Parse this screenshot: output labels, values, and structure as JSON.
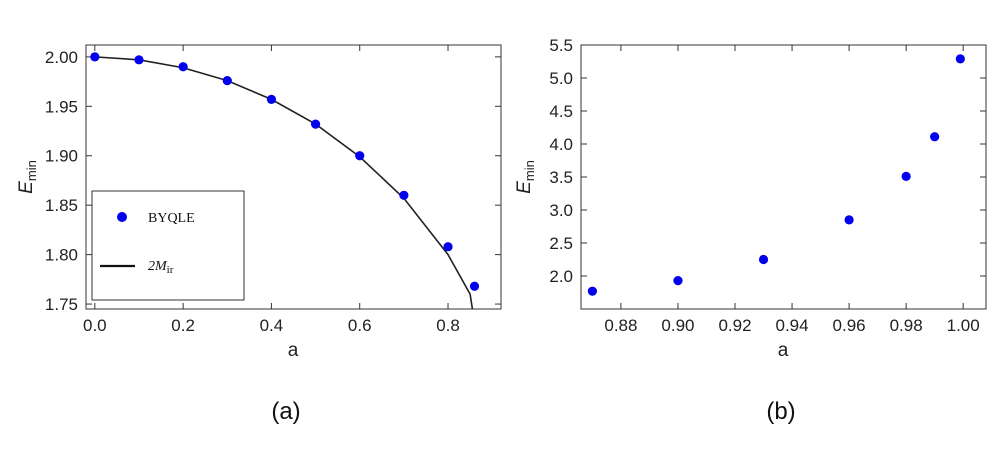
{
  "chart_data": [
    {
      "panel_label": "(a)",
      "type": "scatter",
      "xlabel": "a",
      "ylabel": {
        "base": "E",
        "sub": "min"
      },
      "xlim": [
        -0.02,
        0.92
      ],
      "ylim": [
        1.745,
        2.012
      ],
      "xticks": [
        "0.0",
        "0.2",
        "0.4",
        "0.6",
        "0.8"
      ],
      "xtick_values": [
        0.0,
        0.2,
        0.4,
        0.6,
        0.8
      ],
      "yticks": [
        "1.75",
        "1.80",
        "1.85",
        "1.90",
        "1.95",
        "2.00"
      ],
      "ytick_values": [
        1.75,
        1.8,
        1.85,
        1.9,
        1.95,
        2.0
      ],
      "series": [
        {
          "name": "BYQLE",
          "kind": "points",
          "color": "#0000ee",
          "x": [
            0.0,
            0.1,
            0.2,
            0.3,
            0.4,
            0.5,
            0.6,
            0.7,
            0.8,
            0.86
          ],
          "y": [
            2.0,
            1.997,
            1.99,
            1.976,
            1.957,
            1.932,
            1.9,
            1.86,
            1.808,
            1.768
          ]
        },
        {
          "name": "2M_ir",
          "kind": "line",
          "color": "#222222",
          "x": [
            0.0,
            0.1,
            0.2,
            0.3,
            0.4,
            0.5,
            0.6,
            0.7,
            0.8,
            0.85,
            0.857
          ],
          "y": [
            2.0,
            1.997,
            1.989,
            1.976,
            1.957,
            1.932,
            1.899,
            1.857,
            1.8,
            1.76,
            1.74
          ]
        }
      ],
      "legend": {
        "position": "bottom-left",
        "entries": [
          {
            "kind": "points",
            "label": "BYQLE"
          },
          {
            "kind": "line",
            "label_base": "2M",
            "label_sub": "ir"
          }
        ]
      }
    },
    {
      "panel_label": "(b)",
      "type": "scatter",
      "xlabel": "a",
      "ylabel": {
        "base": "E",
        "sub": "min"
      },
      "xlim": [
        0.866,
        1.008
      ],
      "ylim": [
        1.5,
        5.5
      ],
      "xticks": [
        "0.88",
        "0.90",
        "0.92",
        "0.94",
        "0.96",
        "0.98",
        "1.00"
      ],
      "xtick_values": [
        0.88,
        0.9,
        0.92,
        0.94,
        0.96,
        0.98,
        1.0
      ],
      "yticks": [
        "2.0",
        "2.5",
        "3.0",
        "3.5",
        "4.0",
        "4.5",
        "5.0",
        "5.5"
      ],
      "ytick_values": [
        2.0,
        2.5,
        3.0,
        3.5,
        4.0,
        4.5,
        5.0,
        5.5
      ],
      "series": [
        {
          "kind": "points",
          "color": "#0000ee",
          "x": [
            0.87,
            0.9,
            0.93,
            0.96,
            0.98,
            0.99,
            0.999
          ],
          "y": [
            1.77,
            1.93,
            2.25,
            2.85,
            3.51,
            4.11,
            5.29
          ]
        }
      ]
    }
  ]
}
